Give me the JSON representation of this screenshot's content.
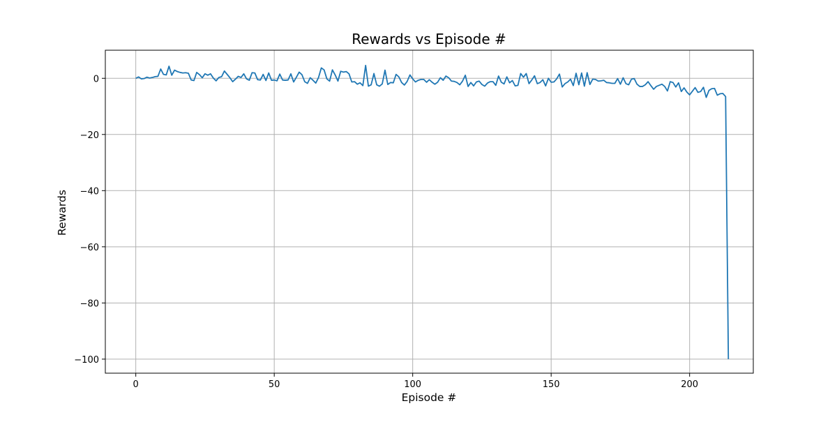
{
  "chart_data": {
    "type": "line",
    "title": "Rewards vs Episode #",
    "xlabel": "Episode #",
    "ylabel": "Rewards",
    "xlim": [
      -11,
      223
    ],
    "ylim": [
      -105,
      10
    ],
    "grid": true,
    "xticks": [
      0,
      50,
      100,
      150,
      200
    ],
    "yticks": [
      0,
      -20,
      -40,
      -60,
      -80,
      -100
    ],
    "xtick_labels": [
      "0",
      "50",
      "100",
      "150",
      "200"
    ],
    "ytick_labels": [
      "0",
      "−20",
      "−40",
      "−60",
      "−80",
      "−100"
    ],
    "line_color": "#1f77b4",
    "series": [
      {
        "values": [
          0.0,
          0.5,
          -0.2,
          -0.1,
          0.4,
          0.1,
          0.3,
          0.6,
          0.7,
          3.3,
          1.4,
          1.2,
          4.3,
          1.1,
          2.9,
          2.4,
          2.1,
          1.9,
          2.0,
          1.8,
          -0.6,
          -0.8,
          2.1,
          1.3,
          0.2,
          1.6,
          1.1,
          1.6,
          0.1,
          -0.9,
          0.3,
          0.6,
          2.6,
          1.4,
          0.2,
          -1.2,
          -0.3,
          0.7,
          0.3,
          1.6,
          -0.2,
          -0.7,
          2.0,
          1.9,
          -0.5,
          -0.6,
          1.4,
          -0.8,
          1.9,
          -0.7,
          -0.6,
          -0.9,
          1.5,
          -0.6,
          -0.7,
          -0.6,
          1.6,
          -1.3,
          0.4,
          2.2,
          1.3,
          -1.2,
          -1.8,
          0.2,
          -0.7,
          -1.7,
          0.3,
          3.7,
          3.0,
          -0.2,
          -1.0,
          3.0,
          1.2,
          -1.0,
          2.5,
          2.2,
          2.4,
          1.6,
          -1.3,
          -1.2,
          -2.1,
          -1.6,
          -2.6,
          4.6,
          -2.8,
          -2.3,
          1.7,
          -2.3,
          -2.8,
          -2.0,
          2.9,
          -2.2,
          -1.5,
          -1.6,
          1.4,
          0.5,
          -1.5,
          -2.4,
          -1.1,
          1.2,
          -0.2,
          -1.3,
          -0.7,
          -0.4,
          -0.4,
          -1.4,
          -0.5,
          -1.4,
          -2.1,
          -1.4,
          0.2,
          -0.7,
          0.8,
          0.2,
          -1.0,
          -1.1,
          -1.5,
          -2.3,
          -1.0,
          1.1,
          -2.9,
          -1.5,
          -2.7,
          -1.3,
          -1.0,
          -2.2,
          -2.8,
          -1.7,
          -1.2,
          -1.2,
          -2.5,
          0.8,
          -1.4,
          -2.0,
          0.5,
          -1.6,
          -0.8,
          -2.7,
          -2.5,
          1.7,
          0.4,
          1.7,
          -1.9,
          -0.6,
          0.9,
          -1.9,
          -1.5,
          -0.5,
          -2.7,
          0.0,
          -1.4,
          -1.3,
          -0.2,
          1.5,
          -3.1,
          -1.9,
          -1.3,
          -0.3,
          -2.6,
          1.8,
          -2.3,
          1.9,
          -2.8,
          2.0,
          -2.2,
          -0.3,
          -0.4,
          -1.0,
          -0.9,
          -0.7,
          -1.5,
          -1.6,
          -1.8,
          -1.8,
          -0.1,
          -2.1,
          0.2,
          -1.9,
          -2.3,
          -0.3,
          -0.1,
          -2.1,
          -2.9,
          -2.9,
          -2.3,
          -1.2,
          -2.6,
          -3.9,
          -2.9,
          -2.5,
          -2.1,
          -2.9,
          -4.5,
          -1.2,
          -1.5,
          -3.1,
          -1.6,
          -4.7,
          -3.4,
          -4.9,
          -5.9,
          -4.6,
          -3.3,
          -5.0,
          -4.7,
          -3.2,
          -6.8,
          -4.3,
          -3.7,
          -3.6,
          -6.0,
          -5.5,
          -5.4,
          -6.5,
          -100.0
        ]
      }
    ]
  }
}
